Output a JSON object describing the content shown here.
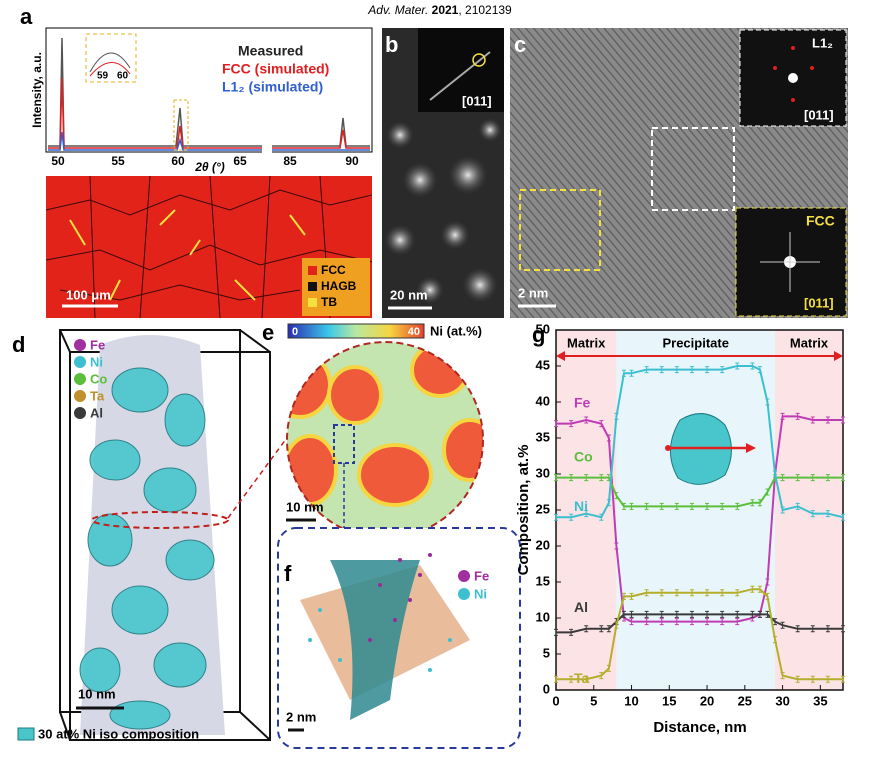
{
  "header": {
    "journal": "Adv. Mater.",
    "year": "2021",
    "article": "2102139"
  },
  "panels": {
    "a": {
      "label": "a",
      "legend": [
        "Measured",
        "FCC (simulated)",
        "L1₂ (simulated)"
      ],
      "y_label": "Intensity, a.u.",
      "x_label": "2θ (°)",
      "x_ticks": [
        "50",
        "55",
        "60",
        "65",
        "85",
        "90"
      ],
      "inset_ticks": [
        "59",
        "60"
      ],
      "map_legend": [
        "FCC",
        "HAGB",
        "TB"
      ],
      "scale_bar": "100 μm"
    },
    "b": {
      "label": "b",
      "zone_axis": "[011]",
      "scale_bar": "20 nm"
    },
    "c": {
      "label": "c",
      "inset_top_title": "L1₂",
      "inset_top_zone": "[011]",
      "inset_bottom_title": "FCC",
      "inset_bottom_zone": "[011]",
      "scale_bar": "2 nm"
    },
    "d": {
      "label": "d",
      "legend": [
        "Fe",
        "Ni",
        "Co",
        "Ta",
        "Al"
      ],
      "scale_bar": "10 nm",
      "iso_label": "30 at% Ni iso composition"
    },
    "e": {
      "label": "e",
      "colorbar_min": "0",
      "colorbar_max": "40",
      "colorbar_label": "Ni (at.%)",
      "scale_bar": "10 nm"
    },
    "f": {
      "label": "f",
      "legend": [
        "Fe",
        "Ni"
      ],
      "scale_bar": "2 nm"
    }
  },
  "chart_data": {
    "type": "line",
    "label": "g",
    "x_label": "Distance, nm",
    "y_label": "Composition, at.%",
    "xlim": [
      0,
      38
    ],
    "ylim": [
      0,
      50
    ],
    "xticks": [
      0,
      5,
      10,
      15,
      20,
      25,
      30,
      35
    ],
    "yticks": [
      0,
      5,
      10,
      15,
      20,
      25,
      30,
      35,
      40,
      45,
      50
    ],
    "shaded_regions": [
      {
        "label": "Matrix",
        "range": [
          0,
          8
        ],
        "color": "#fbe3e6"
      },
      {
        "label": "Precipitate",
        "range": [
          8,
          29
        ],
        "color": "#e8f6fb"
      },
      {
        "label": "Matrix",
        "range": [
          29,
          38
        ],
        "color": "#fbe3e6"
      }
    ],
    "x": [
      0,
      2,
      4,
      6,
      7,
      8,
      9,
      10,
      12,
      14,
      16,
      18,
      20,
      22,
      24,
      26,
      27,
      28,
      29,
      30,
      32,
      34,
      36,
      38
    ],
    "series": [
      {
        "name": "Fe",
        "color": "#c03cb4",
        "values": [
          37,
          37,
          37.5,
          37,
          35,
          20,
          10,
          9.5,
          9.5,
          9.5,
          9.5,
          9.5,
          9.5,
          9.5,
          9.5,
          10,
          10.5,
          15,
          30,
          38,
          38,
          37.5,
          37.5,
          37.5
        ]
      },
      {
        "name": "Co",
        "color": "#5cbf3c",
        "values": [
          29.5,
          29.5,
          29.5,
          29.5,
          29.5,
          27,
          25.5,
          25.5,
          25.5,
          25.5,
          25.5,
          25.5,
          25.5,
          25.5,
          25.5,
          26,
          26,
          27.5,
          29.5,
          29.5,
          29.5,
          29.5,
          29.5,
          29.5
        ]
      },
      {
        "name": "Ni",
        "color": "#3cbfcf",
        "values": [
          24,
          24,
          24.5,
          24,
          26,
          38,
          44,
          44,
          44.5,
          44.5,
          44.5,
          44.5,
          44.5,
          44.5,
          45,
          45,
          44.5,
          40,
          30,
          25,
          25.5,
          24.5,
          24.5,
          24
        ]
      },
      {
        "name": "Al",
        "color": "#3a3a3a",
        "values": [
          8,
          8,
          8.5,
          8.5,
          8.5,
          9.5,
          10.5,
          10.5,
          10.5,
          10.5,
          10.5,
          10.5,
          10.5,
          10.5,
          10.5,
          10.5,
          10.5,
          10.5,
          9.5,
          9,
          8.5,
          8.5,
          8.5,
          8.5
        ]
      },
      {
        "name": "Ta",
        "color": "#b5ad2c",
        "values": [
          1.5,
          1.5,
          1.5,
          2,
          3,
          9,
          13,
          13,
          13.5,
          13.5,
          13.5,
          13.5,
          13.5,
          13.5,
          13.5,
          14,
          14,
          13,
          7,
          2,
          1.5,
          1.5,
          1.5,
          1.5
        ]
      }
    ]
  }
}
